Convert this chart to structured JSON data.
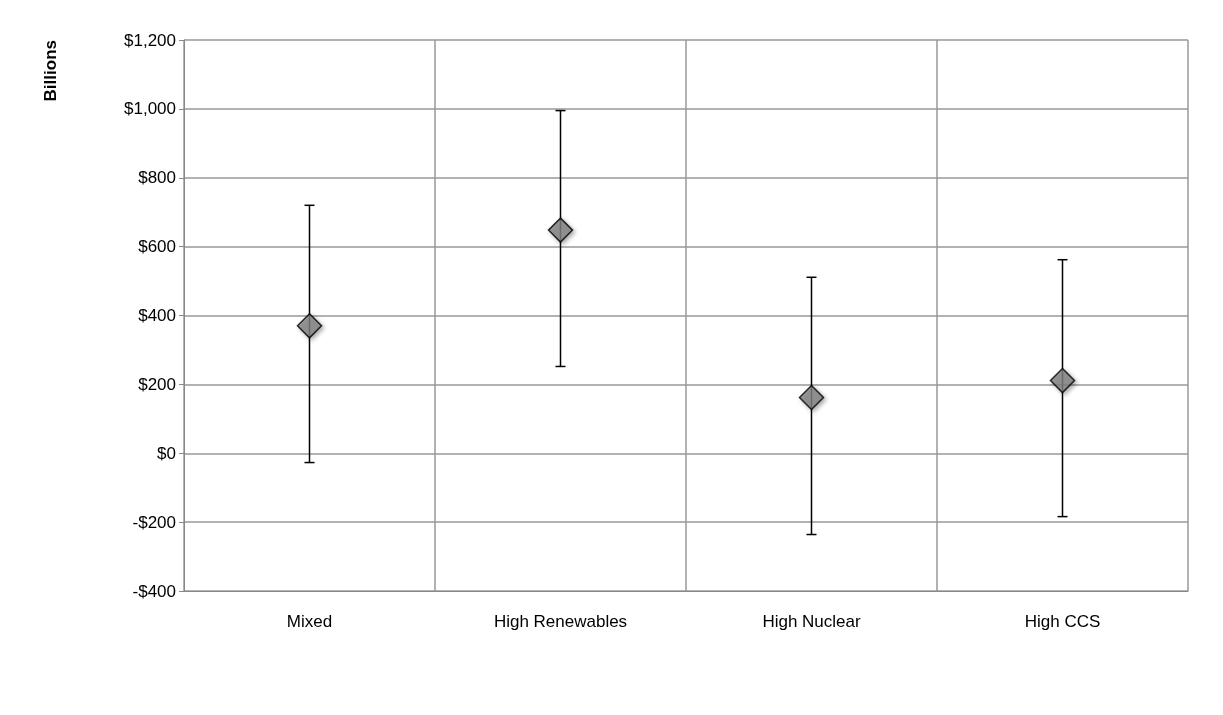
{
  "chart_data": {
    "type": "scatter",
    "ylabel": "Billions",
    "categories": [
      "Mixed",
      "High Renewables",
      "High Nuclear",
      "High CCS"
    ],
    "series": [
      {
        "color": "#808080",
        "values": [
          370,
          648,
          162,
          211
        ],
        "errors": [
          [
            -27,
            720
          ],
          [
            252,
            995
          ],
          [
            -236,
            511
          ],
          [
            -184,
            562
          ]
        ]
      }
    ],
    "ylim": [
      -400,
      1200
    ],
    "yticks": [
      {
        "value": -400,
        "label": "-$400"
      },
      {
        "value": -200,
        "label": "-$200"
      },
      {
        "value": 0,
        "label": "$0"
      },
      {
        "value": 200,
        "label": "$200"
      },
      {
        "value": 400,
        "label": "$400"
      },
      {
        "value": 600,
        "label": "$600"
      },
      {
        "value": 800,
        "label": "$800"
      },
      {
        "value": 1000,
        "label": "$1,000"
      },
      {
        "value": 1200,
        "label": "$1,200"
      }
    ],
    "grid": true,
    "marker": "diamond"
  }
}
